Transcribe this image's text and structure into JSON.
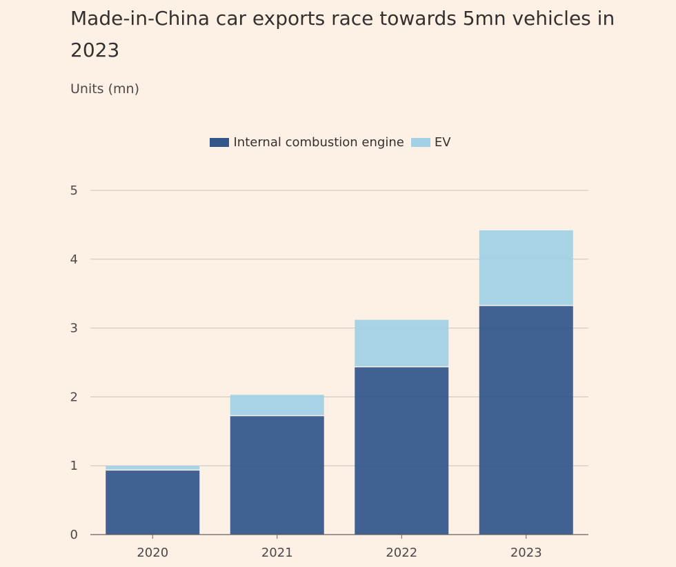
{
  "title": "Made-in-China car exports race towards 5mn vehicles in 2023",
  "subtitle": "Units (mn)",
  "colors": {
    "ice": "#32568a",
    "ev": "#a2d1e5",
    "background": "#fdf1e6",
    "grid": "#c9c3bc"
  },
  "chart_data": {
    "type": "bar",
    "stacked": true,
    "categories": [
      "2020",
      "2021",
      "2022",
      "2023"
    ],
    "series": [
      {
        "name": "Internal combustion engine",
        "values": [
          0.93,
          1.72,
          2.43,
          3.32
        ]
      },
      {
        "name": "EV",
        "values": [
          0.07,
          0.31,
          0.69,
          1.1
        ]
      }
    ],
    "ylim": [
      0,
      5
    ],
    "yticks": [
      "0",
      "1",
      "2",
      "3",
      "4",
      "5"
    ],
    "grid": true,
    "legend": "top-center"
  }
}
